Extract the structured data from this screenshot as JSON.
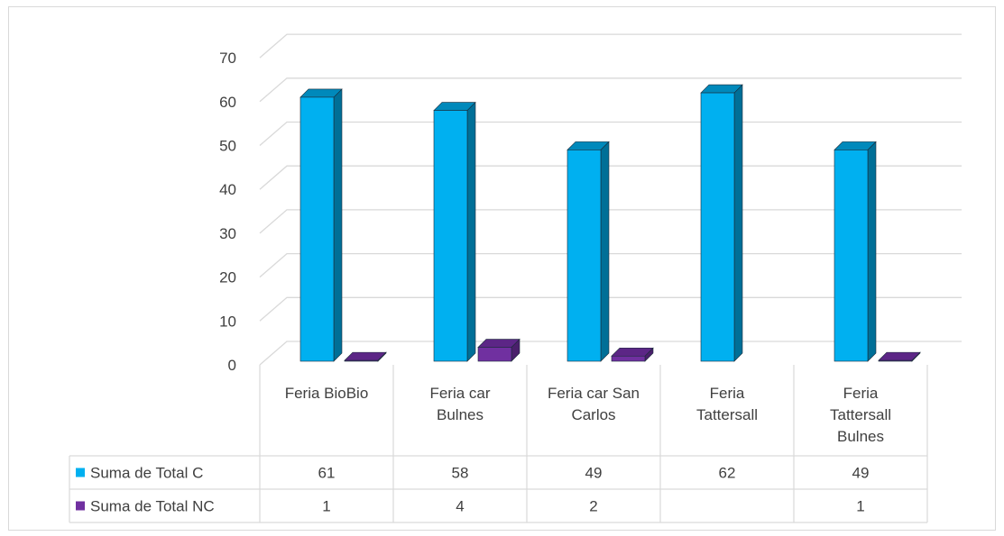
{
  "chart_data": {
    "type": "bar",
    "title": "",
    "xlabel": "",
    "ylabel": "",
    "ylim": [
      0,
      70
    ],
    "yticks": [
      0,
      10,
      20,
      30,
      40,
      50,
      60,
      70
    ],
    "grid": true,
    "legend_placement": "data-table-left",
    "categories": [
      [
        "Feria BioBio"
      ],
      [
        "Feria car",
        "Bulnes"
      ],
      [
        "Feria car San",
        "Carlos"
      ],
      [
        "Feria",
        "Tattersall"
      ],
      [
        "Feria",
        "Tattersall",
        "Bulnes"
      ]
    ],
    "series": [
      {
        "name": "Suma de Total C",
        "values": [
          61,
          58,
          49,
          62,
          49
        ],
        "color": "#00b0f0",
        "side_color": "#006f97",
        "top_color": "#0089bb"
      },
      {
        "name": "Suma de Total NC",
        "values": [
          1,
          4,
          2,
          null,
          1
        ],
        "color": "#7030a0",
        "side_color": "#4a1f6b",
        "top_color": "#5c2686"
      }
    ]
  }
}
